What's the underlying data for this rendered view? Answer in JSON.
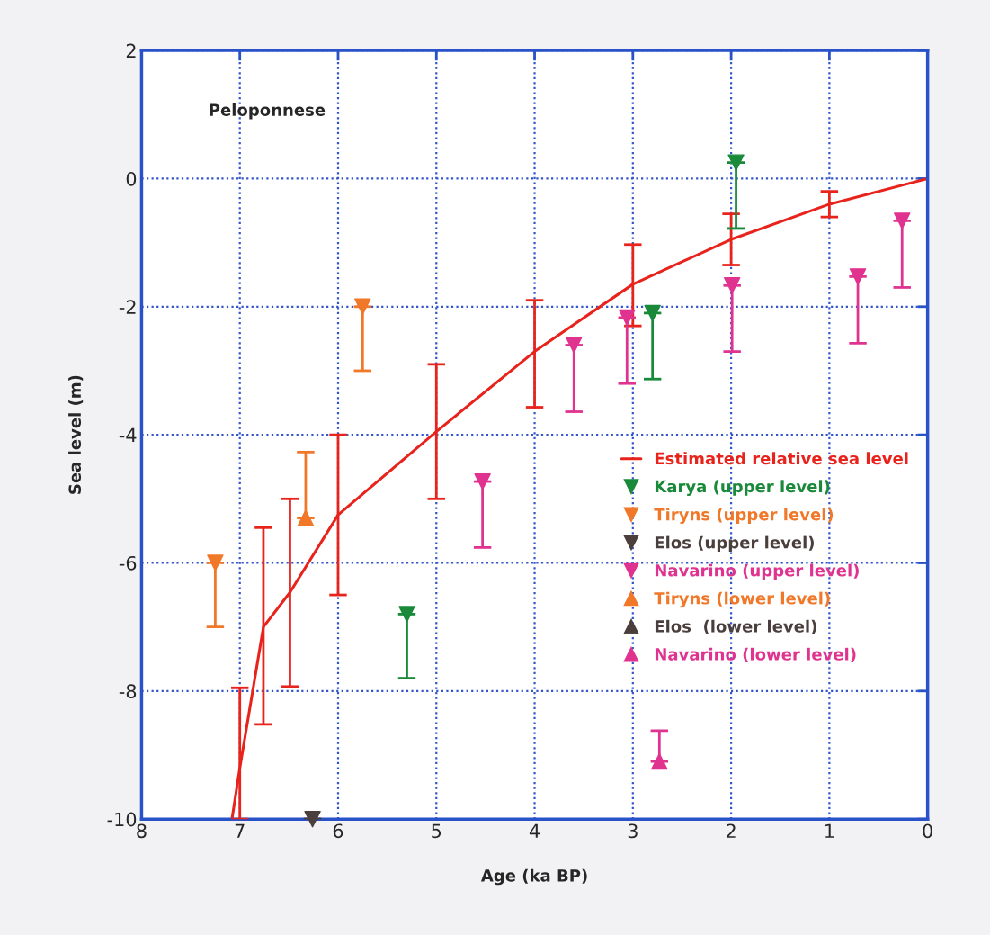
{
  "chart_data": {
    "type": "line",
    "xlabel": "Age (ka BP)",
    "ylabel": "Sea level (m)",
    "annotations": [
      "Peloponnese"
    ],
    "xlim": [
      8,
      0
    ],
    "xticks": [
      8,
      7,
      6,
      5,
      4,
      3,
      2,
      1,
      0
    ],
    "ylim": [
      -10,
      2
    ],
    "yticks": [
      -10,
      -8,
      -6,
      -4,
      -2,
      0,
      2
    ],
    "grid": true,
    "legend": "right",
    "series": [
      {
        "name": "Estimated relative sea level",
        "color": "#e8231c",
        "marker": "none",
        "x": [
          0,
          1,
          2,
          3,
          4,
          5,
          6,
          6.49,
          6.76,
          7.0,
          7.08
        ],
        "values": [
          0,
          -0.4,
          -0.95,
          -1.65,
          -2.7,
          -3.95,
          -5.25,
          -6.46,
          -7.0,
          -9.2,
          -10
        ],
        "errors": [
          null,
          [
            -0.6,
            -0.2
          ],
          [
            -1.35,
            -0.55
          ],
          [
            -2.3,
            -1.03
          ],
          [
            -3.57,
            -1.9
          ],
          [
            -5.0,
            -2.9
          ],
          [
            -6.5,
            -4.0
          ],
          [
            -7.93,
            -5.0
          ],
          [
            -8.52,
            -5.45
          ],
          [
            -10,
            -7.95
          ],
          null
        ]
      },
      {
        "name": "Karya (upper level)",
        "type": "scatter",
        "color": "#1a8a3a",
        "marker": "triangle",
        "x": [
          5.3,
          2.8,
          1.95
        ],
        "values": [
          -6.8,
          -2.1,
          0.25
        ],
        "errors": [
          [
            -7.8,
            -6.8
          ],
          [
            -3.13,
            -2.1
          ],
          [
            -0.78,
            0.25
          ]
        ]
      },
      {
        "name": "Tiryns (upper level)",
        "type": "scatter",
        "color": "#f07828",
        "marker": "triangle",
        "x": [
          7.25,
          5.75
        ],
        "values": [
          -6.0,
          -2.0
        ],
        "errors": [
          [
            -7.0,
            -6.0
          ],
          [
            -3.0,
            -2.0
          ]
        ]
      },
      {
        "name": "Elos (upper level)",
        "type": "scatter",
        "color": "#4a3f3c",
        "marker": "triangle",
        "x": [
          6.26
        ],
        "values": [
          -10
        ],
        "errors": [
          [
            -10,
            -10
          ]
        ]
      },
      {
        "name": "Navarino (upper level)",
        "type": "scatter",
        "color": "#e0338f",
        "marker": "triangle",
        "x": [
          4.53,
          3.6,
          3.06,
          1.99,
          0.71,
          0.26
        ],
        "values": [
          -4.73,
          -2.6,
          -2.17,
          -1.67,
          -1.53,
          -0.66
        ],
        "errors": [
          [
            -5.76,
            -4.73
          ],
          [
            -3.64,
            -2.6
          ],
          [
            -3.2,
            -2.17
          ],
          [
            -2.7,
            -1.67
          ],
          [
            -2.57,
            -1.53
          ],
          [
            -1.7,
            -0.66
          ]
        ]
      },
      {
        "name": "Tiryns (lower level)",
        "type": "scatter",
        "color": "#f07828",
        "marker": "triangle",
        "x": [
          6.33
        ],
        "values": [
          -5.3
        ],
        "errors": [
          [
            -5.3,
            -4.27
          ]
        ]
      },
      {
        "name": "Elos  (lower level)",
        "type": "scatter",
        "color": "#4a3f3c",
        "marker": "triangle"
      },
      {
        "name": "Navarino (lower level)",
        "type": "scatter",
        "color": "#e0338f",
        "marker": "triangle",
        "x": [
          2.73
        ],
        "values": [
          -9.1
        ],
        "errors": [
          [
            -9.1,
            -8.62
          ]
        ]
      }
    ]
  }
}
